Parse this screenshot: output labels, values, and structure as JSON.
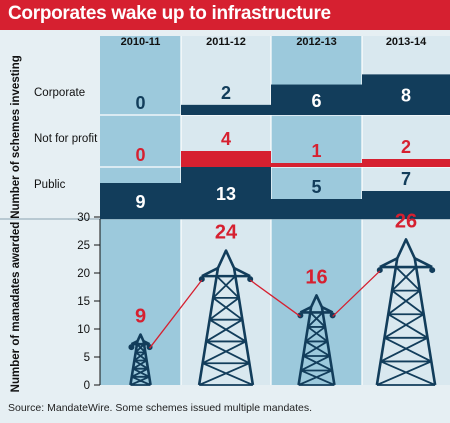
{
  "title": "Corporates wake up to infrastructure",
  "source": "Source: MandateWire. Some schemes issued multiple mandates.",
  "colors": {
    "title_bg": "#d62030",
    "navy": "#123d5b",
    "red": "#d62030",
    "shaded_col": "#9cc9dc",
    "light_col": "#d9e8ef",
    "background": "#e6eff3"
  },
  "chart_data": [
    {
      "type": "bar",
      "ylabel": "Number of schemes investing",
      "categories": [
        "2010-11",
        "2011-12",
        "2012-13",
        "2013-14"
      ],
      "series": [
        {
          "name": "Corporate",
          "values": [
            0,
            2,
            6,
            8
          ],
          "color": "#123d5b",
          "label_color": "#123d5b"
        },
        {
          "name": "Not for profit",
          "values": [
            0,
            4,
            1,
            2
          ],
          "color": "#d62030",
          "label_color": "#d62030"
        },
        {
          "name": "Public",
          "values": [
            9,
            13,
            5,
            7
          ],
          "color": "#123d5b",
          "label_color": "#123d5b"
        }
      ],
      "band_max": 13
    },
    {
      "type": "line",
      "ylabel": "Number of manadates awarded",
      "categories": [
        "2010-11",
        "2011-12",
        "2012-13",
        "2013-14"
      ],
      "values": [
        9,
        24,
        16,
        26
      ],
      "yticks": [
        0,
        5,
        10,
        15,
        20,
        25,
        30
      ],
      "ylim": [
        0,
        30
      ],
      "marker": "pylon",
      "value_color": "#d62030"
    }
  ]
}
